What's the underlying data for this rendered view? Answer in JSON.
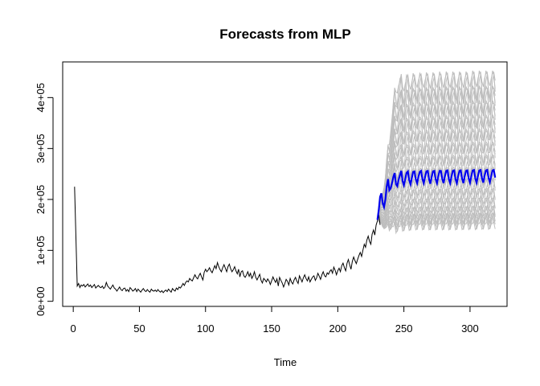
{
  "chart_data": {
    "type": "line",
    "title": "Forecasts from MLP",
    "xlabel": "Time",
    "ylabel": "",
    "xlim": [
      -8,
      328
    ],
    "ylim": [
      -10000,
      470000
    ],
    "x_ticks": [
      0,
      50,
      100,
      150,
      200,
      250,
      300
    ],
    "x_tick_labels": [
      "0",
      "50",
      "100",
      "150",
      "200",
      "250",
      "300"
    ],
    "y_ticks": [
      0,
      100000,
      200000,
      300000,
      400000
    ],
    "y_tick_labels": [
      "0e+00",
      "1e+05",
      "2e+05",
      "3e+05",
      "4e+05"
    ],
    "grid": false,
    "legend": "none",
    "colors": {
      "history": "#000000",
      "forecast_mean": "#0000ee",
      "forecast_paths": "#bebebe"
    },
    "history": {
      "start": 1,
      "values": [
        225000,
        125000,
        30000,
        35000,
        27000,
        32000,
        30000,
        33000,
        28000,
        31000,
        34000,
        29000,
        32000,
        27000,
        30000,
        33000,
        26000,
        29000,
        31000,
        28000,
        27000,
        30000,
        25000,
        28000,
        37000,
        30000,
        27000,
        24000,
        28000,
        32000,
        26000,
        24000,
        20000,
        24000,
        28000,
        23000,
        21000,
        25000,
        26000,
        20000,
        23000,
        19000,
        27000,
        24000,
        20000,
        22000,
        25000,
        19000,
        24000,
        21000,
        18000,
        22000,
        25000,
        21000,
        19000,
        23000,
        20000,
        18000,
        24000,
        21000,
        20000,
        22000,
        19000,
        23000,
        20000,
        18000,
        21000,
        17000,
        20000,
        22000,
        19000,
        24000,
        21000,
        18000,
        25000,
        22000,
        20000,
        26000,
        23000,
        28000,
        26000,
        30000,
        35000,
        31000,
        37000,
        40000,
        38000,
        45000,
        42000,
        40000,
        46000,
        52000,
        47000,
        44000,
        50000,
        55000,
        48000,
        42000,
        57000,
        63000,
        58000,
        61000,
        66000,
        60000,
        56000,
        63000,
        70000,
        64000,
        76000,
        68000,
        62000,
        58000,
        66000,
        72000,
        65000,
        58000,
        68000,
        73000,
        64000,
        58000,
        62000,
        68000,
        60000,
        54000,
        63000,
        48000,
        58000,
        60000,
        50000,
        47000,
        52000,
        58000,
        49000,
        55000,
        45000,
        50000,
        58000,
        47000,
        42000,
        48000,
        53000,
        41000,
        36000,
        45000,
        42000,
        38000,
        44000,
        40000,
        33000,
        40000,
        48000,
        42000,
        37000,
        44000,
        30000,
        47000,
        41000,
        36000,
        28000,
        35000,
        43000,
        39000,
        32000,
        45000,
        38000,
        34000,
        42000,
        47000,
        40000,
        35000,
        50000,
        44000,
        38000,
        46000,
        52000,
        45000,
        40000,
        48000,
        38000,
        43000,
        48000,
        50000,
        41000,
        46000,
        55000,
        49000,
        43000,
        52000,
        58000,
        50000,
        48000,
        56000,
        53000,
        59000,
        62000,
        55000,
        67000,
        61000,
        52000,
        60000,
        65000,
        58000,
        70000,
        75000,
        66000,
        60000,
        75000,
        82000,
        72000,
        63000,
        78000,
        87000,
        80000,
        74000,
        82000,
        90000,
        96000,
        88000,
        100000,
        112000,
        106000,
        120000,
        128000,
        118000,
        112000,
        132000,
        140000,
        130000,
        150000,
        158000,
        170000,
        150000
      ]
    },
    "forecast_mean": {
      "start": 230,
      "values": [
        160000,
        180000,
        205000,
        212000,
        192000,
        185000,
        200000,
        225000,
        240000,
        218000,
        222000,
        232000,
        244000,
        252000,
        230000,
        226000,
        238000,
        248000,
        256000,
        236000,
        228000,
        240000,
        252000,
        255000,
        238000,
        230000,
        242000,
        254000,
        255000,
        240000,
        232000,
        244000,
        254000,
        256000,
        240000,
        232000,
        244000,
        255000,
        256000,
        240000,
        231000,
        244000,
        255000,
        256000,
        240000,
        232000,
        245000,
        256000,
        256000,
        240000,
        232000,
        245000,
        256000,
        257000,
        240000,
        232000,
        245000,
        256000,
        257000,
        240000,
        232000,
        245000,
        256000,
        257000,
        241000,
        232000,
        245000,
        256000,
        257000,
        241000,
        233000,
        246000,
        257000,
        258000,
        241000,
        233000,
        246000,
        257000,
        258000,
        242000,
        233000,
        246000,
        257000,
        258000,
        242000,
        234000,
        246000,
        257000,
        258000,
        243000
      ]
    }
  }
}
